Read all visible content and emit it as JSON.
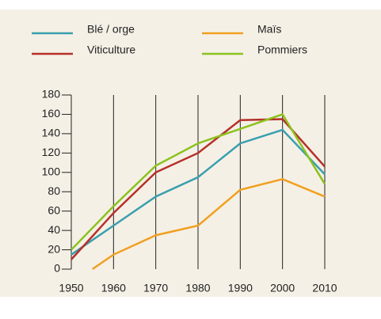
{
  "chart_data": {
    "type": "line",
    "series": [
      {
        "name": "Blé / orge",
        "color": "#3a9fae",
        "x": [
          1950,
          1960,
          1970,
          1980,
          1990,
          2000,
          2010
        ],
        "values": [
          15,
          45,
          75,
          95,
          130,
          144,
          98
        ]
      },
      {
        "name": "Viticulture",
        "color": "#b5302a",
        "x": [
          1950,
          1960,
          1970,
          1980,
          1990,
          2000,
          2010
        ],
        "values": [
          10,
          58,
          100,
          120,
          154,
          155,
          106
        ]
      },
      {
        "name": "Maïs",
        "color": "#f0a020",
        "x": [
          1955,
          1960,
          1970,
          1980,
          1990,
          2000,
          2010
        ],
        "values": [
          0,
          15,
          35,
          45,
          82,
          93,
          75
        ]
      },
      {
        "name": "Pommiers",
        "color": "#8cc21e",
        "x": [
          1950,
          1960,
          1970,
          1980,
          1990,
          2000,
          2010
        ],
        "values": [
          20,
          65,
          107,
          130,
          145,
          160,
          88
        ]
      }
    ],
    "xlim": [
      1950,
      2010
    ],
    "xticks": [
      1950,
      1960,
      1970,
      1980,
      1990,
      2000,
      2010
    ],
    "ylim": [
      0,
      180
    ],
    "yticks": [
      0,
      20,
      40,
      60,
      80,
      100,
      120,
      140,
      160,
      180
    ],
    "grid": true
  }
}
